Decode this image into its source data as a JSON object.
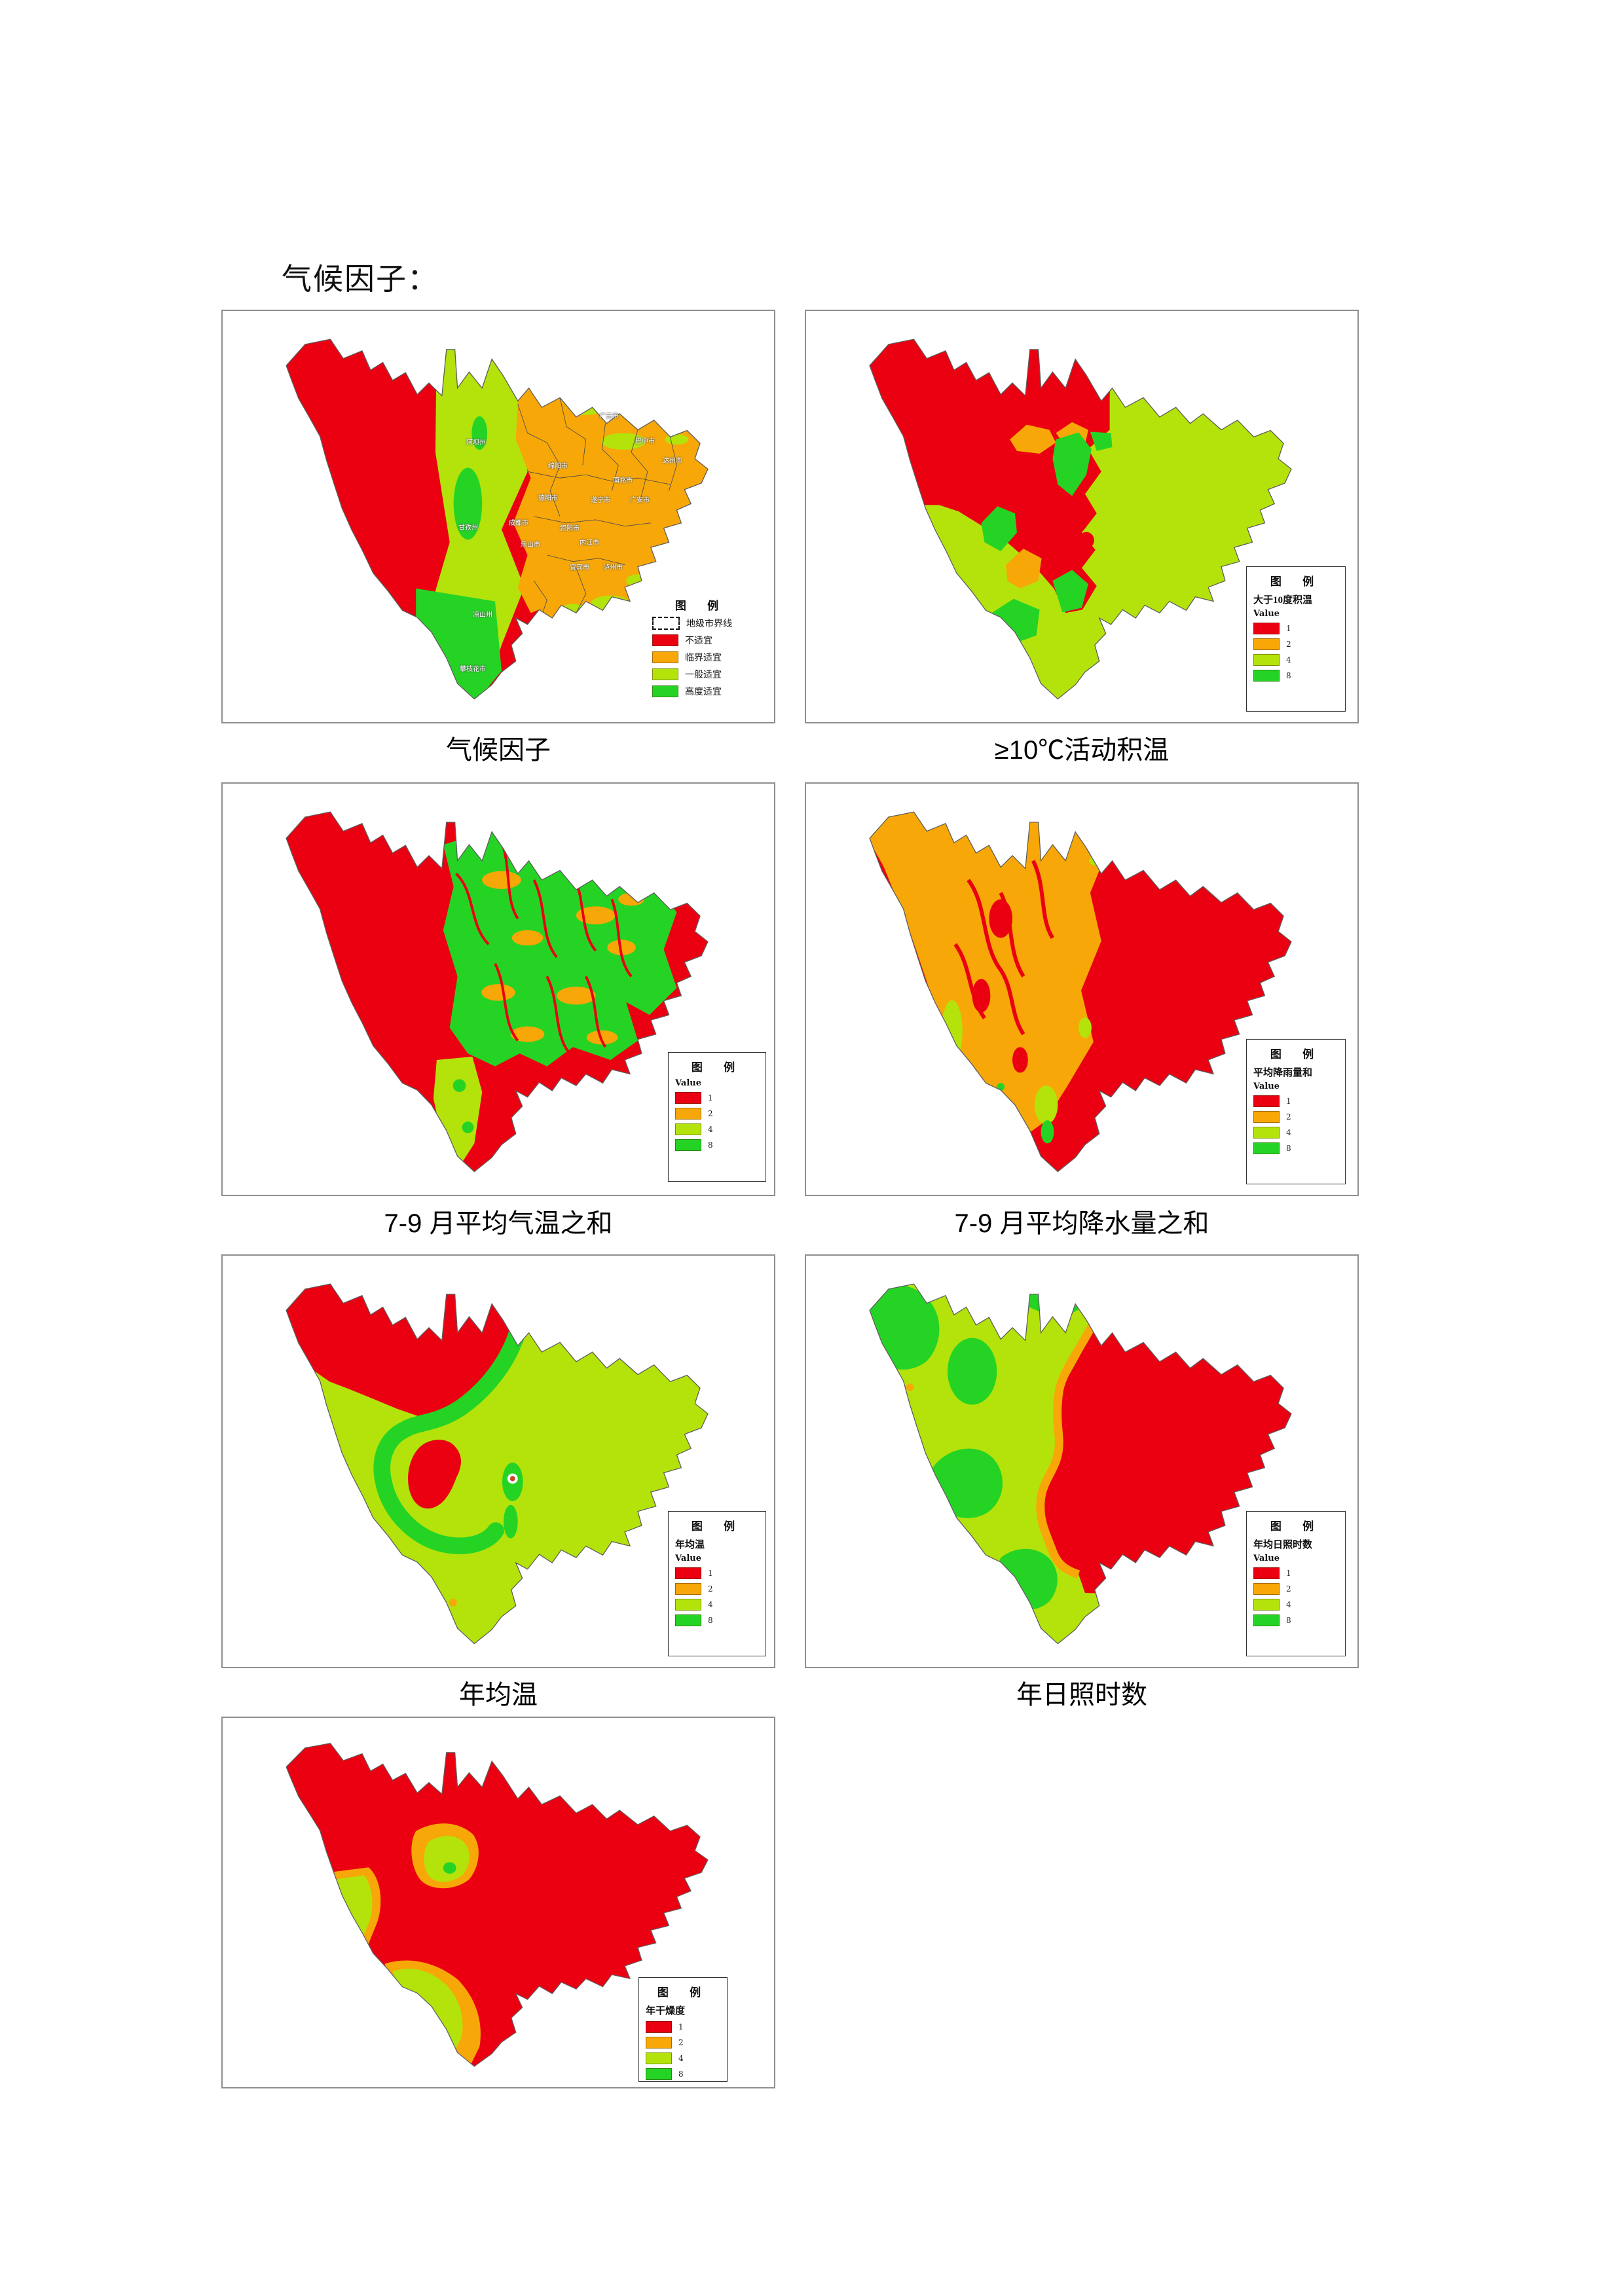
{
  "page": {
    "heading": "气候因子："
  },
  "colors": {
    "value1_red": "#ea0011",
    "value2_orange": "#f7a707",
    "value4_yellow_green": "#b4e30b",
    "value8_green": "#25d325",
    "city_boundary_white": "#ffffff"
  },
  "maps": [
    {
      "id": "climate-factor",
      "caption": "气候因子",
      "legend": {
        "title": "图 例",
        "items": [
          {
            "swatch": "boundary",
            "label": "地级市界线"
          },
          {
            "swatch": "red",
            "label": "不适宜"
          },
          {
            "swatch": "orange",
            "label": "临界适宜"
          },
          {
            "swatch": "yellowgreen",
            "label": "一般适宜"
          },
          {
            "swatch": "green",
            "label": "高度适宜"
          }
        ]
      },
      "city_labels": [
        "阿坝州",
        "甘孜州",
        "凉山州",
        "攀枝花市",
        "广元市",
        "绵阳市",
        "巴中市",
        "达州市",
        "南充市",
        "德阳市",
        "遂宁市",
        "广安市",
        "成都市",
        "资阳市",
        "内江市",
        "乐山市",
        "宜宾市",
        "泸州市"
      ]
    },
    {
      "id": "accumulated-temperature-above-10c",
      "caption": "≥10℃活动积温",
      "legend": {
        "title": "图 例",
        "subtitle": "大于10度积温",
        "value_label": "Value",
        "items": [
          {
            "swatch": "red",
            "label": "1"
          },
          {
            "swatch": "orange",
            "label": "2"
          },
          {
            "swatch": "yellowgreen",
            "label": "4"
          },
          {
            "swatch": "green",
            "label": "8"
          }
        ]
      }
    },
    {
      "id": "jul-sep-mean-temperature-sum",
      "caption": "7-9 月平均气温之和",
      "legend": {
        "title": "图 例",
        "value_label": "Value",
        "items": [
          {
            "swatch": "red",
            "label": "1"
          },
          {
            "swatch": "orange",
            "label": "2"
          },
          {
            "swatch": "yellowgreen",
            "label": "4"
          },
          {
            "swatch": "green",
            "label": "8"
          }
        ]
      }
    },
    {
      "id": "jul-sep-mean-precipitation-sum",
      "caption": "7-9 月平均降水量之和",
      "legend": {
        "title": "图 例",
        "subtitle": "平均降雨量和",
        "value_label": "Value",
        "items": [
          {
            "swatch": "red",
            "label": "1"
          },
          {
            "swatch": "orange",
            "label": "2"
          },
          {
            "swatch": "yellowgreen",
            "label": "4"
          },
          {
            "swatch": "green",
            "label": "8"
          }
        ]
      }
    },
    {
      "id": "annual-mean-temperature",
      "caption": "年均温",
      "legend": {
        "title": "图 例",
        "subtitle": "年均温",
        "value_label": "Value",
        "items": [
          {
            "swatch": "red",
            "label": "1"
          },
          {
            "swatch": "orange",
            "label": "2"
          },
          {
            "swatch": "yellowgreen",
            "label": "4"
          },
          {
            "swatch": "green",
            "label": "8"
          }
        ]
      }
    },
    {
      "id": "annual-sunshine-hours",
      "caption": "年日照时数",
      "legend": {
        "title": "图 例",
        "subtitle": "年均日照时数",
        "value_label": "Value",
        "items": [
          {
            "swatch": "red",
            "label": "1"
          },
          {
            "swatch": "orange",
            "label": "2"
          },
          {
            "swatch": "yellowgreen",
            "label": "4"
          },
          {
            "swatch": "green",
            "label": "8"
          }
        ]
      }
    },
    {
      "id": "annual-dryness",
      "caption": "",
      "legend": {
        "title": "图 例",
        "subtitle": "年干燥度",
        "items": [
          {
            "swatch": "red",
            "label": "1"
          },
          {
            "swatch": "orange",
            "label": "2"
          },
          {
            "swatch": "yellowgreen",
            "label": "4"
          },
          {
            "swatch": "green",
            "label": "8"
          }
        ]
      }
    }
  ]
}
